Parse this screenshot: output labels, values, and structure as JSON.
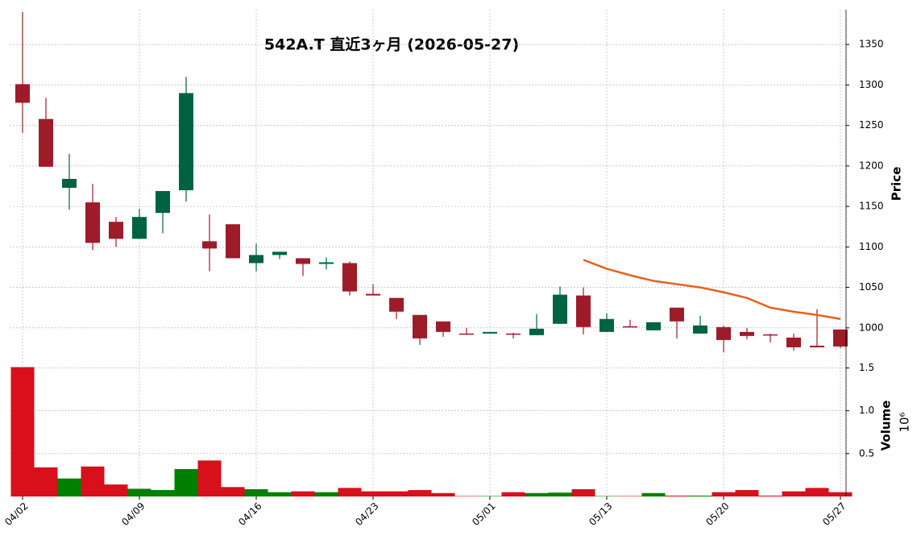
{
  "chart_data": {
    "type": "candlestick",
    "title": "542A.T  直近3ヶ月  (2026-05-27)",
    "categories": [
      "04/02",
      null,
      null,
      null,
      null,
      "04/09",
      null,
      null,
      null,
      null,
      "04/16",
      null,
      null,
      null,
      null,
      "04/23",
      null,
      null,
      null,
      null,
      "05/01",
      null,
      null,
      null,
      null,
      "05/13",
      null,
      null,
      null,
      null,
      "05/20",
      null,
      null,
      null,
      null,
      "05/27"
    ],
    "open": [
      1301,
      1258,
      1173,
      1155,
      1131,
      1110,
      1142,
      1170,
      1107,
      1128,
      1080,
      1090,
      1086,
      1079,
      1080,
      1042,
      1037,
      1016,
      1008,
      993,
      993,
      993,
      991,
      1005,
      1040,
      995,
      1002,
      997,
      1025,
      993,
      1001,
      995,
      992,
      988,
      978,
      998
    ],
    "high": [
      1390,
      1284,
      1215,
      1178,
      1137,
      1147,
      1169,
      1310,
      1140,
      1128,
      1104,
      1094,
      1086,
      1087,
      1082,
      1054,
      1037,
      1016,
      1008,
      1000,
      995,
      994,
      1017,
      1051,
      1050,
      1018,
      1010,
      1007,
      1025,
      1015,
      1003,
      1000,
      993,
      993,
      1023,
      998
    ],
    "low": [
      1241,
      1199,
      1146,
      1096,
      1100,
      1110,
      1117,
      1156,
      1070,
      1086,
      1070,
      1085,
      1064,
      1072,
      1040,
      1040,
      1011,
      979,
      989,
      992,
      993,
      987,
      991,
      1005,
      992,
      995,
      1001,
      997,
      987,
      993,
      970,
      986,
      982,
      972,
      976,
      975
    ],
    "close": [
      1278,
      1199,
      1184,
      1105,
      1110,
      1137,
      1169,
      1290,
      1098,
      1086,
      1090,
      1094,
      1079,
      1081,
      1045,
      1040,
      1020,
      987,
      995,
      992,
      995,
      992,
      999,
      1041,
      1001,
      1011,
      1001,
      1007,
      1008,
      1003,
      985,
      990,
      991,
      976,
      976,
      977
    ],
    "up_color": "#006340",
    "down_color": "#9e1b2a",
    "ylim": [
      960,
      1393
    ],
    "yticks": [
      1000,
      1050,
      1100,
      1150,
      1200,
      1250,
      1300,
      1350
    ],
    "y_label": "Price",
    "grid": true,
    "moving_average": {
      "color": "#e8601c",
      "values": [
        null,
        null,
        null,
        null,
        null,
        null,
        null,
        null,
        null,
        null,
        null,
        null,
        null,
        null,
        null,
        null,
        null,
        null,
        null,
        null,
        null,
        null,
        null,
        null,
        1084,
        1073,
        1065,
        1058,
        1054,
        1050,
        1044,
        1037,
        1025,
        1020,
        1016,
        1011
      ]
    },
    "volume": {
      "label": "Volume",
      "scale_label": "10⁶",
      "up_color": "#008000",
      "down_color": "#d7101b",
      "values": [
        1.51,
        0.34,
        0.21,
        0.35,
        0.14,
        0.09,
        0.075,
        0.32,
        0.42,
        0.11,
        0.085,
        0.05,
        0.06,
        0.05,
        0.1,
        0.06,
        0.06,
        0.075,
        0.04,
        0.005,
        0.005,
        0.05,
        0.04,
        0.045,
        0.085,
        0.005,
        0.005,
        0.04,
        0.01,
        0.01,
        0.05,
        0.075,
        0.01,
        0.06,
        0.1,
        0.05
      ],
      "ylim": [
        0,
        1.59
      ],
      "yticks": [
        0.5,
        {
          "value": 1,
          "label": "1.0"
        },
        1.5
      ]
    }
  }
}
